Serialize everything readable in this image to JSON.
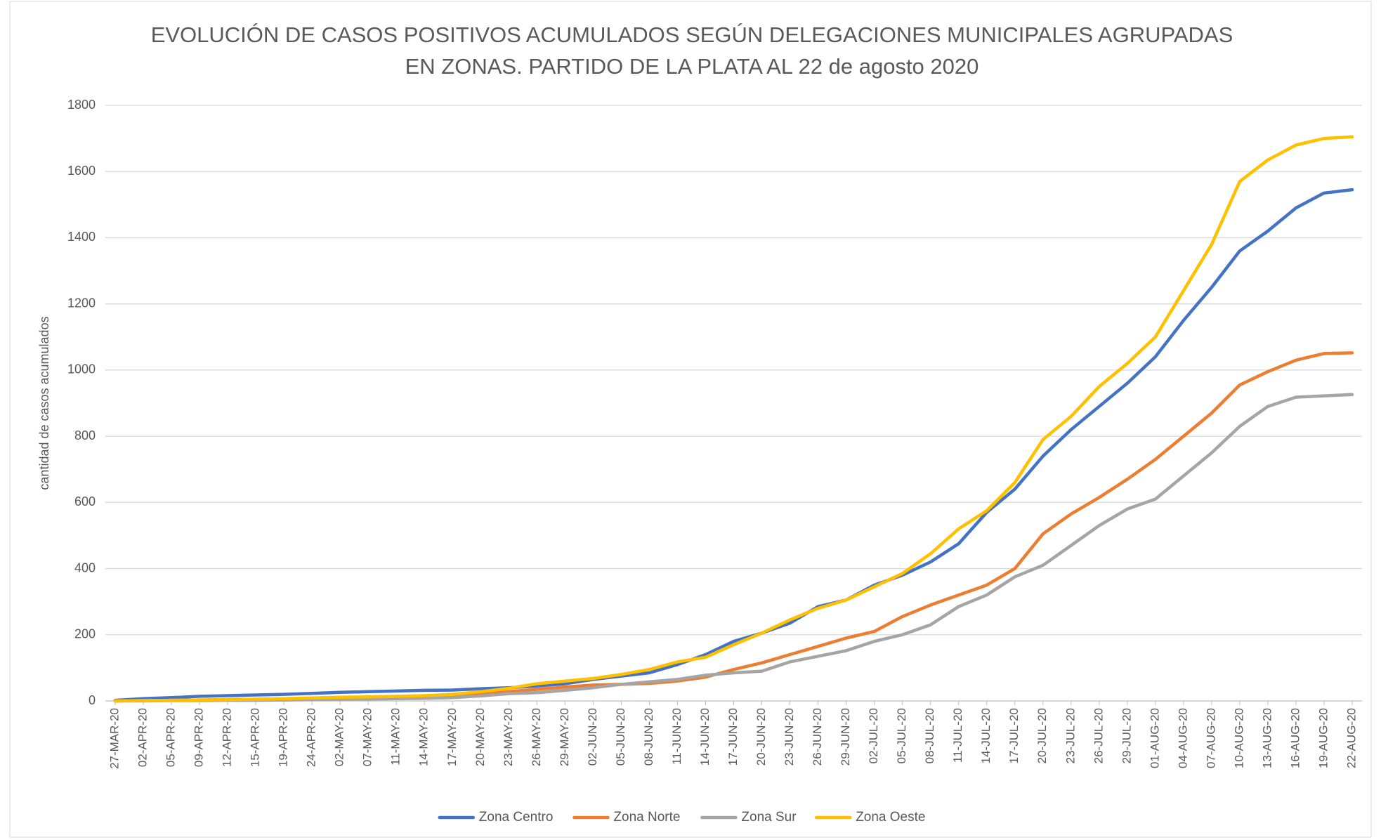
{
  "chart_data": {
    "type": "line",
    "title": [
      "EVOLUCIÓN DE CASOS POSITIVOS ACUMULADOS SEGÚN DELEGACIONES MUNICIPALES AGRUPADAS",
      "EN ZONAS. PARTIDO DE LA PLATA AL 22 de agosto 2020"
    ],
    "ylabel": "cantidad de casos acumulados",
    "categories": [
      "27-MAR-20",
      "02-APR-20",
      "05-APR-20",
      "09-APR-20",
      "12-APR-20",
      "15-APR-20",
      "19-APR-20",
      "24-APR-20",
      "02-MAY-20",
      "07-MAY-20",
      "11-MAY-20",
      "14-MAY-20",
      "17-MAY-20",
      "20-MAY-20",
      "23-MAY-20",
      "26-MAY-20",
      "29-MAY-20",
      "02-JUN-20",
      "05-JUN-20",
      "08-JUN-20",
      "11-JUN-20",
      "14-JUN-20",
      "17-JUN-20",
      "20-JUN-20",
      "23-JUN-20",
      "26-JUN-20",
      "29-JUN-20",
      "02-JUL-20",
      "05-JUL-20",
      "08-JUL-20",
      "11-JUL-20",
      "14-JUL-20",
      "17-JUL-20",
      "20-JUL-20",
      "23-JUL-20",
      "26-JUL-20",
      "29-JUL-20",
      "01-AUG-20",
      "04-AUG-20",
      "07-AUG-20",
      "10-AUG-20",
      "13-AUG-20",
      "16-AUG-20",
      "19-AUG-20",
      "22-AUG-20"
    ],
    "series": [
      {
        "name": "Zona Centro",
        "color": "#4472c4",
        "values": [
          2,
          7,
          10,
          14,
          16,
          18,
          20,
          23,
          26,
          28,
          30,
          32,
          33,
          37,
          40,
          45,
          52,
          65,
          75,
          85,
          110,
          140,
          180,
          205,
          235,
          285,
          305,
          350,
          380,
          420,
          475,
          570,
          640,
          740,
          820,
          890,
          960,
          1040,
          1150,
          1250,
          1360,
          1420,
          1490,
          1535,
          1545
        ]
      },
      {
        "name": "Zona Norte",
        "color": "#ed7d31",
        "values": [
          0,
          1,
          2,
          3,
          4,
          5,
          6,
          7,
          8,
          9,
          10,
          12,
          14,
          20,
          28,
          35,
          42,
          48,
          50,
          53,
          60,
          72,
          95,
          115,
          140,
          165,
          190,
          210,
          255,
          290,
          320,
          350,
          400,
          505,
          565,
          615,
          670,
          730,
          800,
          870,
          955,
          995,
          1030,
          1050,
          1052
        ]
      },
      {
        "name": "Zona Sur",
        "color": "#a5a5a5",
        "values": [
          0,
          0,
          1,
          1,
          2,
          2,
          3,
          4,
          5,
          6,
          7,
          8,
          10,
          15,
          22,
          25,
          32,
          40,
          50,
          58,
          65,
          78,
          85,
          90,
          118,
          135,
          152,
          180,
          200,
          230,
          285,
          320,
          375,
          410,
          470,
          530,
          580,
          610,
          680,
          750,
          830,
          890,
          918,
          922,
          926
        ]
      },
      {
        "name": "Zona Oeste",
        "color": "#ffc000",
        "values": [
          0,
          1,
          2,
          3,
          4,
          5,
          7,
          9,
          11,
          12,
          14,
          16,
          20,
          28,
          38,
          52,
          60,
          68,
          80,
          95,
          118,
          132,
          170,
          205,
          245,
          280,
          305,
          345,
          385,
          445,
          520,
          575,
          660,
          790,
          860,
          950,
          1020,
          1100,
          1240,
          1380,
          1570,
          1635,
          1680,
          1700,
          1705
        ]
      }
    ],
    "ylim": [
      0,
      1800
    ],
    "yticks": [
      0,
      200,
      400,
      600,
      800,
      1000,
      1200,
      1400,
      1600,
      1800
    ],
    "grid": true,
    "legend": "bottom"
  }
}
